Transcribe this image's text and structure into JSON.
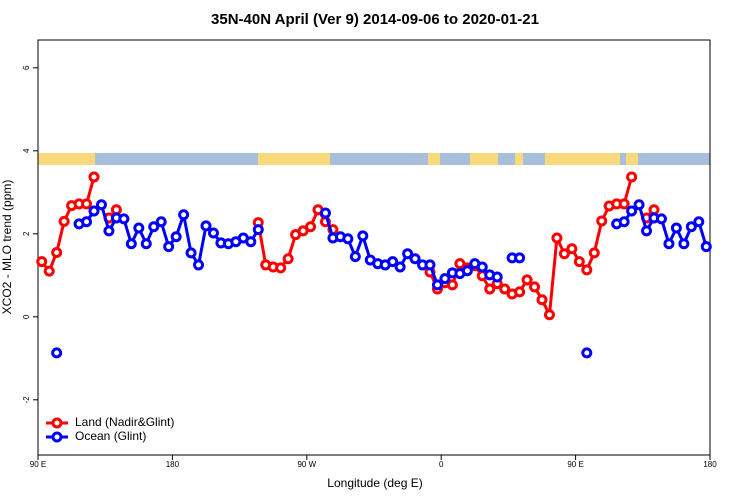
{
  "chart_data": {
    "type": "line",
    "title": "35N-40N April (Ver 9)   2014-09-06 to 2020-01-21",
    "xlabel": "Longitude (deg E)",
    "ylabel": "XCO2 - MLO trend (ppm)",
    "x": [
      92.5,
      97.5,
      102.5,
      107.5,
      112.5,
      117.5,
      122.5,
      127.5,
      132.5,
      137.5,
      142.5,
      147.5,
      152.5,
      157.5,
      162.5,
      167.5,
      172.5,
      177.5,
      182.5,
      187.5,
      192.5,
      197.5,
      202.5,
      207.5,
      212.5,
      217.5,
      222.5,
      227.5,
      232.5,
      237.5,
      242.5,
      247.5,
      252.5,
      257.5,
      262.5,
      267.5,
      272.5,
      277.5,
      282.5,
      287.5,
      292.5,
      297.5,
      302.5,
      307.5,
      312.5,
      317.5,
      322.5,
      327.5,
      332.5,
      337.5,
      342.5,
      347.5,
      352.5,
      357.5,
      362.5,
      367.5,
      372.5,
      377.5,
      382.5,
      387.5,
      392.5,
      397.5,
      402.5,
      407.5,
      412.5,
      417.5,
      422.5,
      427.5,
      432.5,
      437.5,
      442.5,
      447.5,
      452.5,
      457.5,
      462.5,
      467.5,
      472.5,
      477.5,
      482.5,
      487.5,
      492.5,
      497.5,
      502.5,
      507.5,
      512.5,
      517.5,
      522.5,
      527.5,
      532.5,
      537.5
    ],
    "series": [
      {
        "name": "Land (Nadir&Glint)",
        "color": "#ff0000",
        "values": [
          1.33,
          1.1,
          1.55,
          2.3,
          2.68,
          2.72,
          2.72,
          3.37,
          null,
          2.38,
          2.58,
          null,
          null,
          null,
          null,
          null,
          null,
          null,
          null,
          null,
          null,
          null,
          null,
          null,
          null,
          null,
          null,
          null,
          null,
          2.27,
          1.25,
          1.2,
          1.18,
          1.4,
          1.98,
          2.07,
          2.17,
          2.58,
          2.29,
          2.1,
          null,
          null,
          null,
          null,
          null,
          null,
          null,
          null,
          null,
          null,
          null,
          null,
          1.08,
          0.67,
          0.82,
          0.77,
          1.28,
          1.18,
          1.23,
          0.99,
          0.67,
          0.8,
          0.67,
          0.55,
          0.6,
          0.89,
          0.72,
          0.41,
          0.05,
          1.9,
          1.52,
          1.64,
          1.33,
          1.13,
          1.54,
          2.31,
          2.67,
          2.72,
          2.72,
          3.37,
          null,
          2.38,
          2.58,
          null,
          null,
          null,
          null,
          null,
          null,
          null
        ]
      },
      {
        "name": "Ocean (Glint)",
        "color": "#0000ff",
        "values": [
          null,
          null,
          -0.87,
          null,
          null,
          2.24,
          2.29,
          2.55,
          2.7,
          2.07,
          2.38,
          2.36,
          1.76,
          2.14,
          1.76,
          2.17,
          2.29,
          1.69,
          1.93,
          2.46,
          1.54,
          1.25,
          2.19,
          2.02,
          1.78,
          1.76,
          1.81,
          1.9,
          1.81,
          2.1,
          null,
          null,
          null,
          null,
          null,
          null,
          null,
          null,
          2.5,
          1.9,
          1.93,
          1.88,
          1.45,
          1.95,
          1.37,
          1.28,
          1.25,
          1.33,
          1.2,
          1.52,
          1.4,
          1.25,
          1.25,
          0.77,
          0.92,
          1.06,
          1.04,
          1.11,
          1.28,
          1.2,
          1.01,
          0.96,
          null,
          1.42,
          1.42,
          null,
          null,
          null,
          null,
          null,
          null,
          null,
          null,
          -0.87,
          null,
          null,
          null,
          2.24,
          2.29,
          2.55,
          2.7,
          2.07,
          2.38,
          2.36,
          1.76,
          2.14,
          1.76,
          2.17,
          2.29,
          1.69
        ]
      }
    ],
    "xlim": [
      90,
      540
    ],
    "xticks": [
      {
        "value": 90,
        "label": "90 E"
      },
      180,
      {
        "value": 270,
        "label": "90 W"
      },
      {
        "value": 360,
        "label": "0"
      },
      {
        "value": 450,
        "label": "90 E"
      },
      {
        "value": 540,
        "label": "180"
      }
    ],
    "ylim": [
      -3.33,
      6.67
    ],
    "yticks": [
      -2,
      0,
      2,
      4,
      6
    ],
    "legend": "bottom-left"
  }
}
